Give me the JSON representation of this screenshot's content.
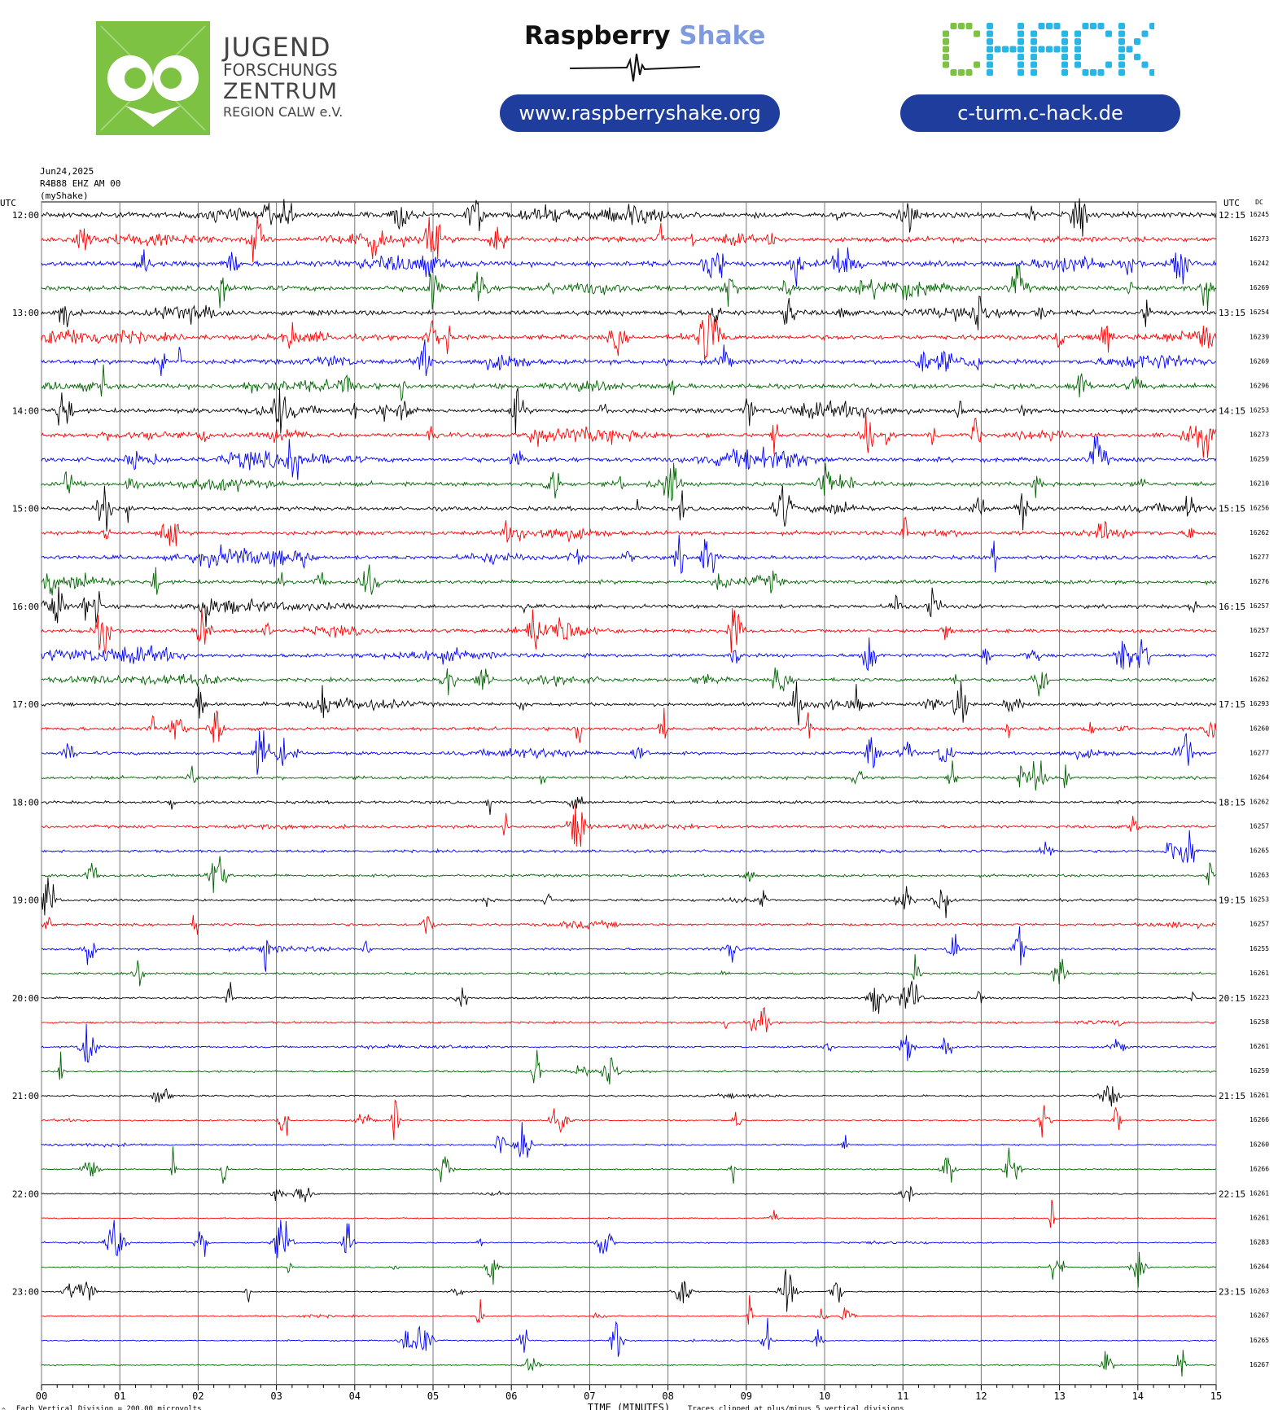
{
  "header": {
    "jfz_logo": {
      "line1": "JUGEND",
      "line2": "FORSCHUNGS",
      "line3": "ZENTRUM",
      "line4": "REGION CALW e.V."
    },
    "rs_logo": {
      "word1": "Raspberry",
      "word2": "Shake"
    },
    "rs_url": "www.raspberryshake.org",
    "chack_logo": "CHACK",
    "chack_url": "c-turm.c-hack.de"
  },
  "meta": {
    "date": "Jun24,2025",
    "channel": "R4B88 EHZ AM 00",
    "source": "(myShake)"
  },
  "chart_data": {
    "type": "helicorder",
    "utc_label_left": "UTC",
    "utc_label_right": "UTC",
    "dc_label": "DC",
    "xlabel": "TIME (MINUTES)",
    "x_ticks": [
      "00",
      "01",
      "02",
      "03",
      "04",
      "05",
      "06",
      "07",
      "08",
      "09",
      "10",
      "11",
      "12",
      "13",
      "14",
      "15"
    ],
    "xlim": [
      0,
      15
    ],
    "left_hour_labels": [
      "12:00",
      "13:00",
      "14:00",
      "15:00",
      "16:00",
      "17:00",
      "18:00",
      "19:00",
      "20:00",
      "21:00",
      "22:00",
      "23:00"
    ],
    "right_hour_labels": [
      "12:15",
      "13:15",
      "14:15",
      "15:15",
      "16:15",
      "17:15",
      "18:15",
      "19:15",
      "20:15",
      "21:15",
      "22:15",
      "23:15"
    ],
    "trace_colors": [
      "#000000",
      "#ff0000",
      "#0000ff",
      "#006400"
    ],
    "dc_offsets": [
      16245,
      16273,
      16242,
      16269,
      16254,
      16239,
      16269,
      16296,
      16253,
      16273,
      16259,
      16210,
      16256,
      16262,
      16277,
      16276,
      16257,
      16257,
      16272,
      16262,
      16293,
      16260,
      16277,
      16264,
      16262,
      16257,
      16265,
      16263,
      16253,
      16257,
      16255,
      16261,
      16223,
      16258,
      16261,
      16259,
      16261,
      16266,
      16260,
      16266,
      16261,
      16261,
      16283,
      16264,
      16263,
      16267,
      16265,
      16267
    ],
    "footer_left": "Each Vertical Division = 200.00 microvolts",
    "footer_right": "Traces clipped at plus/minus 5 vertical divisions",
    "corner_mark": "^"
  }
}
